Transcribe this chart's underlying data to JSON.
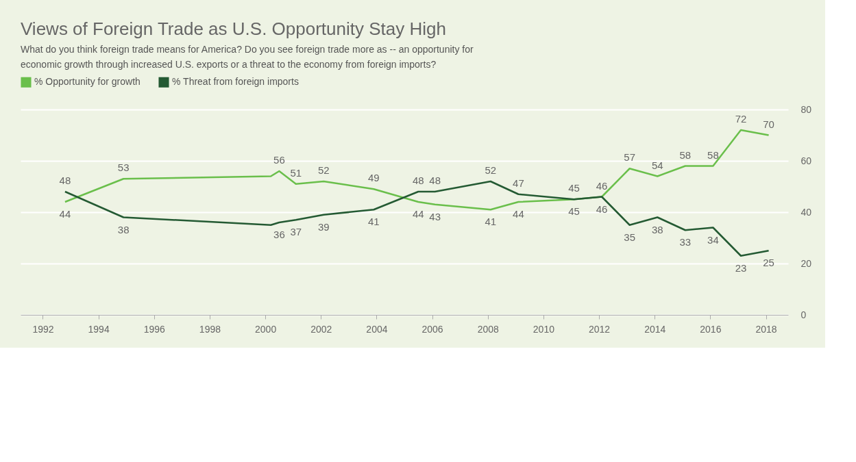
{
  "chart_data": {
    "type": "line",
    "title": "Views of Foreign Trade as U.S. Opportunity Stay High",
    "subtitle": "What do you think foreign trade means for America? Do you see foreign trade more as -- an opportunity for economic growth through increased U.S. exports or a threat to the economy from foreign imports?",
    "x": [
      1992.8,
      1994.9,
      2000.2,
      2000.5,
      2001.1,
      2002.1,
      2003.9,
      2005.5,
      2006.1,
      2008.1,
      2009.1,
      2011.1,
      2012.1,
      2013.1,
      2014.1,
      2015.1,
      2016.1,
      2017.1,
      2018.1
    ],
    "series": [
      {
        "name": "% Opportunity for growth",
        "color": "#6abf4b",
        "values": [
          44,
          53,
          54,
          56,
          51,
          52,
          49,
          44,
          43,
          41,
          44,
          45,
          46,
          57,
          54,
          58,
          58,
          72,
          70
        ],
        "value_labels": [
          "44",
          "53",
          null,
          "56",
          "51",
          "52",
          "49",
          "44",
          "43",
          "41",
          "44",
          "45",
          "46",
          "57",
          "54",
          "58",
          "58",
          "72",
          "70"
        ]
      },
      {
        "name": "% Threat from foreign imports",
        "color": "#245a33",
        "values": [
          48,
          38,
          35,
          36,
          37,
          39,
          41,
          48,
          48,
          52,
          47,
          45,
          46,
          35,
          38,
          33,
          34,
          23,
          25
        ],
        "value_labels": [
          "48",
          "38",
          null,
          "36",
          "37",
          "39",
          "41",
          "48",
          "48",
          "52",
          "47",
          "45",
          "46",
          "35",
          "38",
          "33",
          "34",
          "23",
          "25"
        ]
      }
    ],
    "xlim": [
      1991.2,
      2018.8
    ],
    "xticks": [
      1992,
      1994,
      1996,
      1998,
      2000,
      2002,
      2004,
      2006,
      2008,
      2010,
      2012,
      2014,
      2016,
      2018
    ],
    "ylim": [
      0,
      80
    ],
    "yticks": [
      0,
      20,
      40,
      60,
      80
    ],
    "grid": "y",
    "legend": "top left",
    "marker": "none",
    "line_style": "solid"
  }
}
